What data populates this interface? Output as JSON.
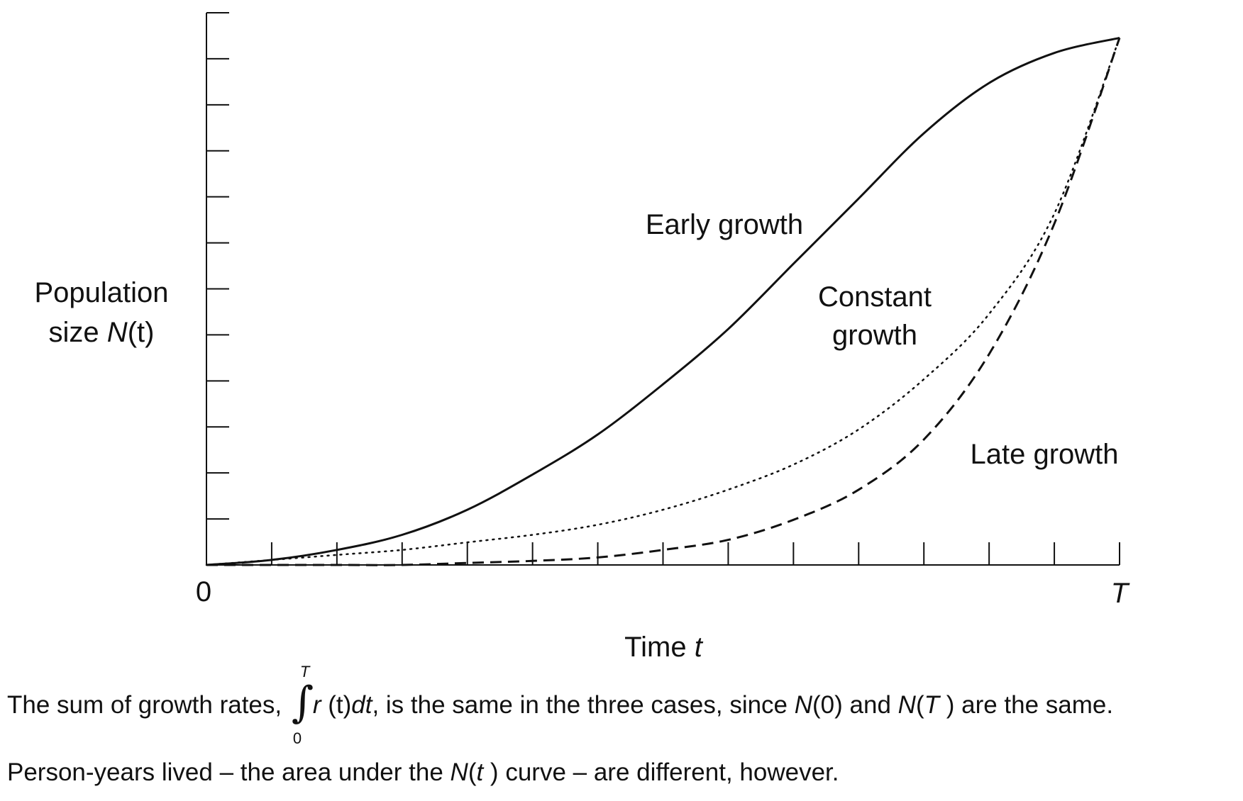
{
  "chart_data": {
    "type": "line",
    "x_axis": {
      "label_prefix": "Time ",
      "label_var": "t",
      "tick_labels": [
        "0",
        "T"
      ],
      "range": [
        0,
        1
      ],
      "tick_count": 15
    },
    "y_axis": {
      "label_line1": "Population",
      "label_line2_prefix": "size ",
      "label_line2_func": "N",
      "label_line2_arg": "(t)",
      "range": [
        0,
        1.1
      ],
      "tick_count": 12
    },
    "grid": false,
    "series": [
      {
        "name": "Early growth",
        "style": "solid",
        "x": [
          0,
          0.0714,
          0.1429,
          0.2143,
          0.2857,
          0.3571,
          0.4286,
          0.5,
          0.5714,
          0.6429,
          0.7143,
          0.7857,
          0.8571,
          0.9286,
          1.0
        ],
        "y": [
          0,
          0.01,
          0.03,
          0.06,
          0.11,
          0.18,
          0.26,
          0.36,
          0.47,
          0.6,
          0.73,
          0.86,
          0.96,
          1.02,
          1.05
        ]
      },
      {
        "name_line1": "Constant",
        "name_line2": "growth",
        "style": "dotted",
        "x": [
          0,
          0.0714,
          0.1429,
          0.2143,
          0.2857,
          0.3571,
          0.4286,
          0.5,
          0.5714,
          0.6429,
          0.7143,
          0.7857,
          0.8571,
          0.9286,
          1.0
        ],
        "y": [
          0,
          0.01,
          0.02,
          0.03,
          0.045,
          0.06,
          0.08,
          0.11,
          0.15,
          0.2,
          0.27,
          0.37,
          0.5,
          0.7,
          1.05
        ]
      },
      {
        "name": "Late growth",
        "style": "dashed",
        "x": [
          0,
          0.0714,
          0.1429,
          0.2143,
          0.2857,
          0.3571,
          0.4286,
          0.5,
          0.5714,
          0.6429,
          0.7143,
          0.7857,
          0.8571,
          0.9286,
          1.0
        ],
        "y": [
          0,
          0.0,
          0.0,
          0.0,
          0.004,
          0.008,
          0.015,
          0.03,
          0.05,
          0.09,
          0.15,
          0.25,
          0.42,
          0.68,
          1.05
        ]
      }
    ]
  },
  "caption": {
    "line1": {
      "part1": "The sum of growth rates, ",
      "integral_upper": "T",
      "integral_lower": "0",
      "integrand_r": "r",
      "integrand_t": " (t)",
      "integrand_dt": "dt",
      "part2": ", is the same in the three cases, since ",
      "n0_n": "N",
      "n0_arg": "(0)",
      "part3": " and ",
      "nT_n": "N",
      "nT_open": "(",
      "nT_T": "T",
      "nT_close": " )",
      "part4": " are the same."
    },
    "line2": {
      "part1": "Person-years lived – the area under the ",
      "n_n": "N",
      "n_open": "(",
      "n_t": "t",
      "n_close": " )",
      "part2": " curve – are different, however."
    }
  }
}
